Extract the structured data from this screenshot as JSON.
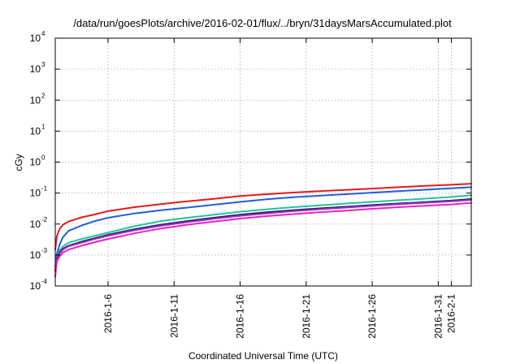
{
  "chart_data": {
    "type": "line",
    "title": "/data/run/goesPlots/archive/2016-02-01/flux/../bryn/31daysMarsAccumulated.plot",
    "xlabel": "Coordinated Universal Time (UTC)",
    "ylabel": "cGy",
    "yscale": "log",
    "grid": true,
    "xlim": [
      "2016-01-02T00:00",
      "2016-02-02T12:00"
    ],
    "ylim": [
      0.0001,
      10000
    ],
    "y_ticks": [
      {
        "base": "10",
        "exp": "-4",
        "value": 0.0001
      },
      {
        "base": "10",
        "exp": "-3",
        "value": 0.001
      },
      {
        "base": "10",
        "exp": "-2",
        "value": 0.01
      },
      {
        "base": "10",
        "exp": "-1",
        "value": 0.1
      },
      {
        "base": "10",
        "exp": "0",
        "value": 1
      },
      {
        "base": "10",
        "exp": "1",
        "value": 10
      },
      {
        "base": "10",
        "exp": "2",
        "value": 100
      },
      {
        "base": "10",
        "exp": "3",
        "value": 1000
      },
      {
        "base": "10",
        "exp": "4",
        "value": 10000
      }
    ],
    "x_ticks": [
      {
        "label": "2016-1-6",
        "value": "2016-01-06"
      },
      {
        "label": "2016-1-11",
        "value": "2016-01-11"
      },
      {
        "label": "2016-1-16",
        "value": "2016-01-16"
      },
      {
        "label": "2016-1-21",
        "value": "2016-01-21"
      },
      {
        "label": "2016-1-26",
        "value": "2016-01-26"
      },
      {
        "label": "2016-1-31",
        "value": "2016-01-31"
      },
      {
        "label": "2016-2-1",
        "value": "2016-02-01"
      }
    ],
    "x": [
      "2016-01-02T00:00",
      "2016-01-02T03:00",
      "2016-01-02T08:00",
      "2016-01-02T14:00",
      "2016-01-03T00:00",
      "2016-01-04T00:00",
      "2016-01-05T00:00",
      "2016-01-06T00:00",
      "2016-01-08T00:00",
      "2016-01-10T00:00",
      "2016-01-12T00:00",
      "2016-01-14T00:00",
      "2016-01-16T00:00",
      "2016-01-18T00:00",
      "2016-01-20T00:00",
      "2016-01-22T00:00",
      "2016-01-24T00:00",
      "2016-01-26T00:00",
      "2016-01-28T00:00",
      "2016-01-30T00:00",
      "2016-02-01T00:00",
      "2016-02-02T12:00"
    ],
    "series": [
      {
        "color": "#e41a1c",
        "values": [
          0.0015,
          0.004,
          0.007,
          0.0095,
          0.012,
          0.0165,
          0.0205,
          0.026,
          0.035,
          0.044,
          0.054,
          0.065,
          0.08,
          0.092,
          0.104,
          0.115,
          0.126,
          0.14,
          0.155,
          0.17,
          0.185,
          0.2
        ]
      },
      {
        "color": "#1e5fe0",
        "values": [
          0.0004,
          0.0011,
          0.0022,
          0.0038,
          0.006,
          0.009,
          0.0125,
          0.016,
          0.022,
          0.028,
          0.034,
          0.042,
          0.052,
          0.063,
          0.073,
          0.082,
          0.092,
          0.103,
          0.115,
          0.128,
          0.142,
          0.155
        ]
      },
      {
        "color": "#22c39a",
        "values": [
          0.0004,
          0.0009,
          0.0014,
          0.0019,
          0.0025,
          0.0033,
          0.0042,
          0.0053,
          0.0085,
          0.0125,
          0.016,
          0.02,
          0.025,
          0.03,
          0.035,
          0.04,
          0.046,
          0.052,
          0.059,
          0.066,
          0.075,
          0.085
        ]
      },
      {
        "color": "#1a1a4a",
        "values": [
          0.0003,
          0.0008,
          0.0012,
          0.0016,
          0.002,
          0.0027,
          0.0035,
          0.0045,
          0.0068,
          0.0095,
          0.0125,
          0.016,
          0.02,
          0.024,
          0.028,
          0.032,
          0.036,
          0.041,
          0.046,
          0.051,
          0.057,
          0.064
        ]
      },
      {
        "color": "#9b30d0",
        "values": [
          0.0003,
          0.0007,
          0.0011,
          0.0015,
          0.0019,
          0.0025,
          0.0033,
          0.0042,
          0.0063,
          0.0088,
          0.0115,
          0.0148,
          0.0185,
          0.022,
          0.026,
          0.03,
          0.034,
          0.0385,
          0.0435,
          0.0485,
          0.054,
          0.06
        ]
      },
      {
        "color": "#f020c0",
        "values": [
          0.0002,
          0.0006,
          0.0009,
          0.0012,
          0.0015,
          0.002,
          0.0026,
          0.0033,
          0.005,
          0.0072,
          0.0095,
          0.012,
          0.015,
          0.018,
          0.021,
          0.024,
          0.027,
          0.031,
          0.035,
          0.039,
          0.043,
          0.048
        ]
      }
    ]
  }
}
